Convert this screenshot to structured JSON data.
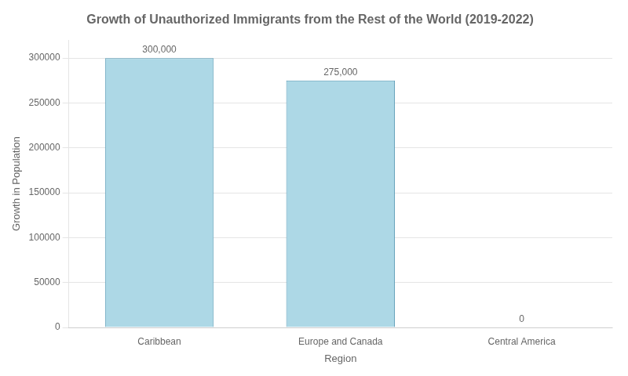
{
  "chart_data": {
    "type": "bar",
    "title": "Growth of Unauthorized Immigrants from the Rest of the World (2019-2022)",
    "categories": [
      "Caribbean",
      "Europe and Canada",
      "Central America"
    ],
    "values": [
      300000,
      275000,
      0
    ],
    "value_labels": [
      "300,000",
      "275,000",
      "0"
    ],
    "data_labels": true,
    "color": "#add8e6",
    "xlabel": "Region",
    "ylabel": "Growth in Population",
    "ylim": [
      0,
      320000
    ],
    "yticks": [
      0,
      50000,
      100000,
      150000,
      200000,
      250000,
      300000
    ],
    "grid": true
  }
}
